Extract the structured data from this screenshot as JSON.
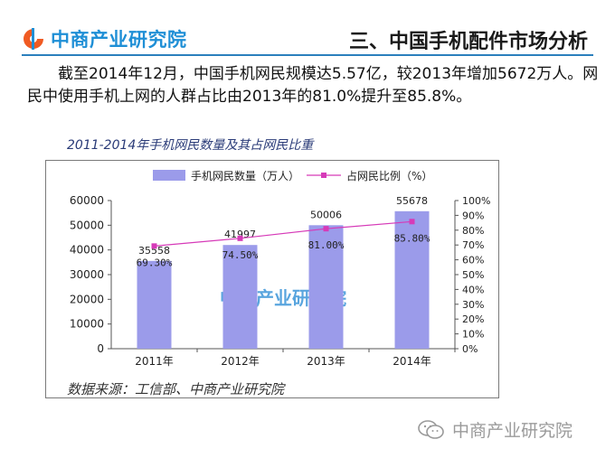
{
  "header": {
    "logo_text": "中商产业研究院",
    "section_title": "三、中国手机配件市场分析"
  },
  "description": "截至2014年12月，中国手机网民规模达5.57亿，较2013年增加5672万人。网民中使用手机上网的人群占比由2013年的81.0%提升至85.8%。",
  "chart_caption": "2011-2014年手机网民数量及其占网民比重",
  "chart_data": {
    "type": "bar",
    "categories": [
      "2011年",
      "2012年",
      "2013年",
      "2014年"
    ],
    "series": [
      {
        "name": "手机网民数量（万人）",
        "type": "bar",
        "axis": "left",
        "values": [
          35558,
          41997,
          50006,
          55678
        ],
        "color": "#9b9bea"
      },
      {
        "name": "占网民比例（%）",
        "type": "line",
        "axis": "right",
        "values": [
          69.3,
          74.5,
          81.0,
          85.8
        ],
        "color": "#d63ab8"
      }
    ],
    "bar_labels": [
      "35558",
      "41997",
      "50006",
      "55678"
    ],
    "line_labels": [
      "69.30%",
      "74.50%",
      "81.00%",
      "85.80%"
    ],
    "y_left": {
      "min": 0,
      "max": 60000,
      "ticks": [
        "0",
        "10000",
        "20000",
        "30000",
        "40000",
        "50000",
        "60000"
      ]
    },
    "y_right": {
      "min": 0,
      "max": 100,
      "ticks": [
        "0%",
        "10%",
        "20%",
        "30%",
        "40%",
        "50%",
        "60%",
        "70%",
        "80%",
        "90%",
        "100%"
      ]
    },
    "legend_position": "top",
    "watermark": "中商产业研究院"
  },
  "source_text": "数据来源：工信部、中商产业研究院",
  "footer": {
    "logo_text": "中商产业研究院"
  }
}
